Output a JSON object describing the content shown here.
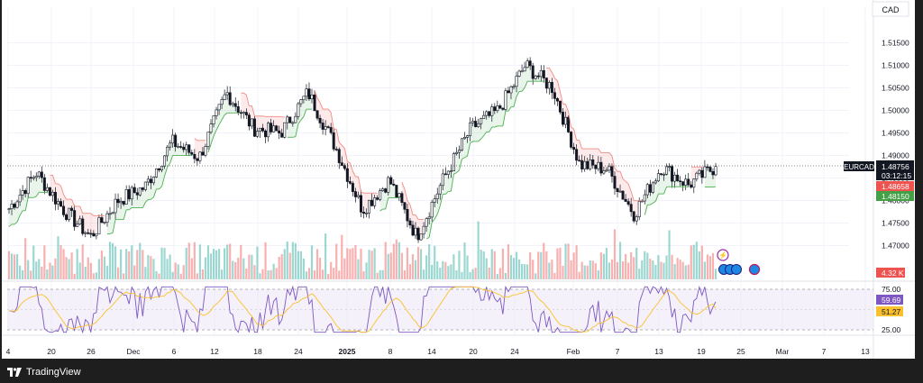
{
  "currency_label": "CAD",
  "footer": {
    "brand": "TradingView"
  },
  "chart_data": {
    "type": "line",
    "symbol": "EURCAD",
    "panes": [
      "price",
      "volume",
      "rsi"
    ],
    "price_axis": {
      "ticks": [
        "1.51500",
        "1.51000",
        "1.50500",
        "1.50000",
        "1.49500",
        "1.49000",
        "1.48500",
        "1.48000",
        "1.47500",
        "1.47000"
      ]
    },
    "time_axis": {
      "ticks": [
        "4",
        "20",
        "26",
        "Dec",
        "6",
        "12",
        "18",
        "24",
        "2025",
        "8",
        "14",
        "20",
        "24",
        "Feb",
        "7",
        "13",
        "19",
        "25",
        "Mar",
        "7",
        "13"
      ]
    },
    "price_tags": {
      "symbol_tag": "EURCAD",
      "last": "1.48756",
      "countdown": "03:12:15",
      "trail_upper": "1.48658",
      "trail_lower": "1.48150",
      "volume": "4.32 K"
    },
    "rsi": {
      "ticks": [
        "75.00",
        "25.00"
      ],
      "value": "59.69",
      "signal": "51.27"
    },
    "keypoints": [
      {
        "t": "4",
        "close": 1.4782
      },
      {
        "t": "12-Nov",
        "close": 1.4862
      },
      {
        "t": "20",
        "close": 1.478
      },
      {
        "t": "26",
        "close": 1.472
      },
      {
        "t": "Dec",
        "close": 1.48
      },
      {
        "t": "6",
        "close": 1.483
      },
      {
        "t": "9-Dec",
        "close": 1.493
      },
      {
        "t": "12",
        "close": 1.4895
      },
      {
        "t": "18",
        "close": 1.504
      },
      {
        "t": "21-Dec",
        "close": 1.496
      },
      {
        "t": "24",
        "close": 1.495
      },
      {
        "t": "28-Dec",
        "close": 1.504
      },
      {
        "t": "2025",
        "close": 1.492
      },
      {
        "t": "8",
        "close": 1.478
      },
      {
        "t": "10-Jan",
        "close": 1.4845
      },
      {
        "t": "14",
        "close": 1.472
      },
      {
        "t": "20",
        "close": 1.485
      },
      {
        "t": "22-Jan",
        "close": 1.496
      },
      {
        "t": "24",
        "close": 1.5
      },
      {
        "t": "28-Jan",
        "close": 1.51
      },
      {
        "t": "Feb",
        "close": 1.505
      },
      {
        "t": "5-Feb",
        "close": 1.488
      },
      {
        "t": "7",
        "close": 1.487
      },
      {
        "t": "9-Feb",
        "close": 1.477
      },
      {
        "t": "13",
        "close": 1.4875
      },
      {
        "t": "19",
        "close": 1.4835
      },
      {
        "t": "22-Feb",
        "close": 1.48756
      }
    ],
    "colors": {
      "up": "#26a69a",
      "down": "#ef5350",
      "trail_up": "#4caf50",
      "trail_down": "#f28b82",
      "rsi_line": "#7e57c2",
      "rsi_signal": "#fbc02d",
      "rsi_band": "#ede7f6"
    }
  }
}
